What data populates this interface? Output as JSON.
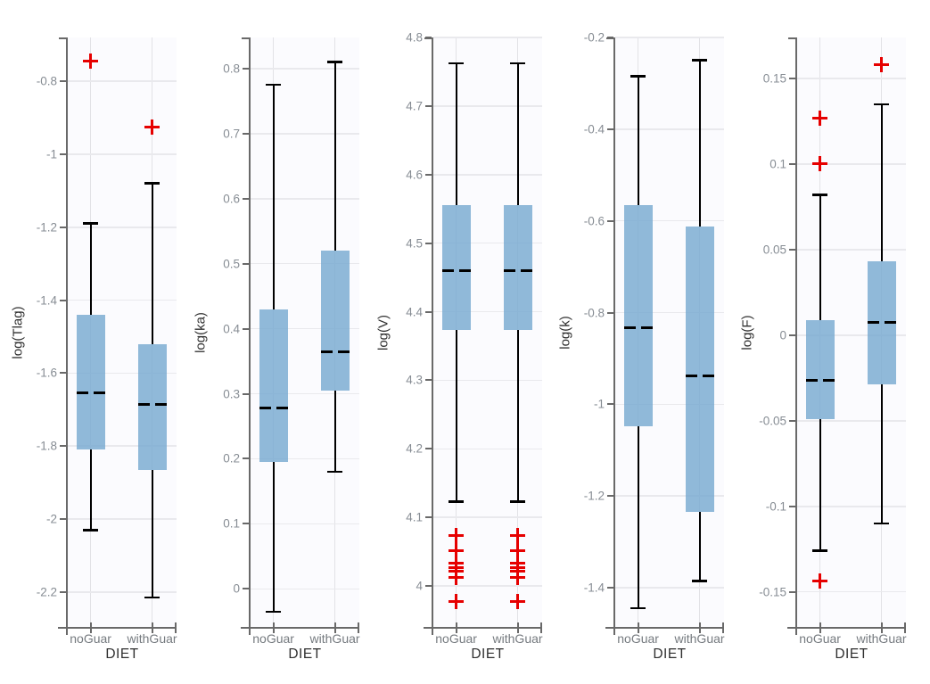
{
  "figure": {
    "background": "#ffffff",
    "plot_background": "#fbfbfe",
    "colors": {
      "box_fill": "#8fb8d8",
      "median": "#000000",
      "whisker": "#000000",
      "outlier": "#e60000",
      "spine": "#696969",
      "grid": "#e9e9ed",
      "tick_label": "#878d94",
      "axis_label": "#2f2f2f"
    }
  },
  "chart_data": {
    "type": "boxplot",
    "title": "",
    "categories": [
      "noGuar",
      "withGuar"
    ],
    "xlabel": "DIET",
    "legend": "none",
    "grid": "on",
    "panels": [
      {
        "ylabel": "log(Tlag)",
        "ylim": [
          -2.298,
          -0.68
        ],
        "yticks": [
          {
            "v": -0.8,
            "label": "-0.8"
          },
          {
            "v": -1.0,
            "label": "-1"
          },
          {
            "v": -1.2,
            "label": "-1.2"
          },
          {
            "v": -1.4,
            "label": "-1.4"
          },
          {
            "v": -1.6,
            "label": "-1.6"
          },
          {
            "v": -1.8,
            "label": "-1.8"
          },
          {
            "v": -2.0,
            "label": "-2"
          },
          {
            "v": -2.2,
            "label": "-2.2"
          }
        ],
        "groups": [
          {
            "category": "noGuar",
            "whisker_low": -2.03,
            "q1": -1.81,
            "median": -1.655,
            "q3": -1.44,
            "whisker_high": -1.19,
            "outliers": [
              -0.745
            ]
          },
          {
            "category": "withGuar",
            "whisker_low": -2.215,
            "q1": -1.865,
            "median": -1.685,
            "q3": -1.52,
            "whisker_high": -1.08,
            "outliers": [
              -0.925
            ]
          }
        ]
      },
      {
        "ylabel": "log(ka)",
        "ylim": [
          -0.06,
          0.848
        ],
        "yticks": [
          {
            "v": 0.8,
            "label": "0.8"
          },
          {
            "v": 0.7,
            "label": "0.7"
          },
          {
            "v": 0.6,
            "label": "0.6"
          },
          {
            "v": 0.5,
            "label": "0.5"
          },
          {
            "v": 0.4,
            "label": "0.4"
          },
          {
            "v": 0.3,
            "label": "0.3"
          },
          {
            "v": 0.2,
            "label": "0.2"
          },
          {
            "v": 0.1,
            "label": "0.1"
          },
          {
            "v": 0.0,
            "label": "0"
          }
        ],
        "groups": [
          {
            "category": "noGuar",
            "whisker_low": -0.035,
            "q1": 0.195,
            "median": 0.278,
            "q3": 0.43,
            "whisker_high": 0.775,
            "outliers": []
          },
          {
            "category": "withGuar",
            "whisker_low": 0.18,
            "q1": 0.305,
            "median": 0.365,
            "q3": 0.52,
            "whisker_high": 0.81,
            "outliers": []
          }
        ]
      },
      {
        "ylabel": "log(V)",
        "ylim": [
          3.939,
          4.8
        ],
        "yticks": [
          {
            "v": 4.8,
            "label": "4.8"
          },
          {
            "v": 4.7,
            "label": "4.7"
          },
          {
            "v": 4.6,
            "label": "4.6"
          },
          {
            "v": 4.5,
            "label": "4.5"
          },
          {
            "v": 4.4,
            "label": "4.4"
          },
          {
            "v": 4.3,
            "label": "4.3"
          },
          {
            "v": 4.2,
            "label": "4.2"
          },
          {
            "v": 4.1,
            "label": "4.1"
          },
          {
            "v": 4.0,
            "label": "4"
          }
        ],
        "groups": [
          {
            "category": "noGuar",
            "whisker_low": 4.123,
            "q1": 4.374,
            "median": 4.46,
            "q3": 4.556,
            "whisker_high": 4.762,
            "outliers": [
              4.074,
              4.051,
              4.033,
              4.027,
              4.021,
              4.012,
              3.977
            ]
          },
          {
            "category": "withGuar",
            "whisker_low": 4.123,
            "q1": 4.374,
            "median": 4.46,
            "q3": 4.556,
            "whisker_high": 4.762,
            "outliers": [
              4.074,
              4.051,
              4.033,
              4.027,
              4.021,
              4.012,
              3.977
            ]
          }
        ]
      },
      {
        "ylabel": "log(k)",
        "ylim": [
          -1.4875,
          -0.2
        ],
        "yticks": [
          {
            "v": -0.2,
            "label": "-0.2"
          },
          {
            "v": -0.4,
            "label": "-0.4"
          },
          {
            "v": -0.6,
            "label": "-0.6"
          },
          {
            "v": -0.8,
            "label": "-0.8"
          },
          {
            "v": -1.0,
            "label": "-1"
          },
          {
            "v": -1.2,
            "label": "-1.2"
          },
          {
            "v": -1.4,
            "label": "-1.4"
          }
        ],
        "groups": [
          {
            "category": "noGuar",
            "whisker_low": -1.445,
            "q1": -1.048,
            "median": -0.833,
            "q3": -0.565,
            "whisker_high": -0.285,
            "outliers": []
          },
          {
            "category": "withGuar",
            "whisker_low": -1.385,
            "q1": -1.235,
            "median": -0.938,
            "q3": -0.613,
            "whisker_high": -0.25,
            "outliers": []
          }
        ]
      },
      {
        "ylabel": "log(F)",
        "ylim": [
          -0.171,
          0.174
        ],
        "yticks": [
          {
            "v": 0.15,
            "label": "0.15"
          },
          {
            "v": 0.1,
            "label": "0.1"
          },
          {
            "v": 0.05,
            "label": "0.05"
          },
          {
            "v": 0.0,
            "label": "0"
          },
          {
            "v": -0.05,
            "label": "-0.05"
          },
          {
            "v": -0.1,
            "label": "-0.1"
          },
          {
            "v": -0.15,
            "label": "-0.15"
          }
        ],
        "groups": [
          {
            "category": "noGuar",
            "whisker_low": -0.126,
            "q1": -0.049,
            "median": -0.0265,
            "q3": 0.009,
            "whisker_high": 0.082,
            "outliers": [
              0.127,
              0.1,
              -0.1435
            ]
          },
          {
            "category": "withGuar",
            "whisker_low": -0.11,
            "q1": -0.0285,
            "median": 0.0075,
            "q3": 0.043,
            "whisker_high": 0.135,
            "outliers": [
              0.158
            ]
          }
        ]
      }
    ]
  }
}
